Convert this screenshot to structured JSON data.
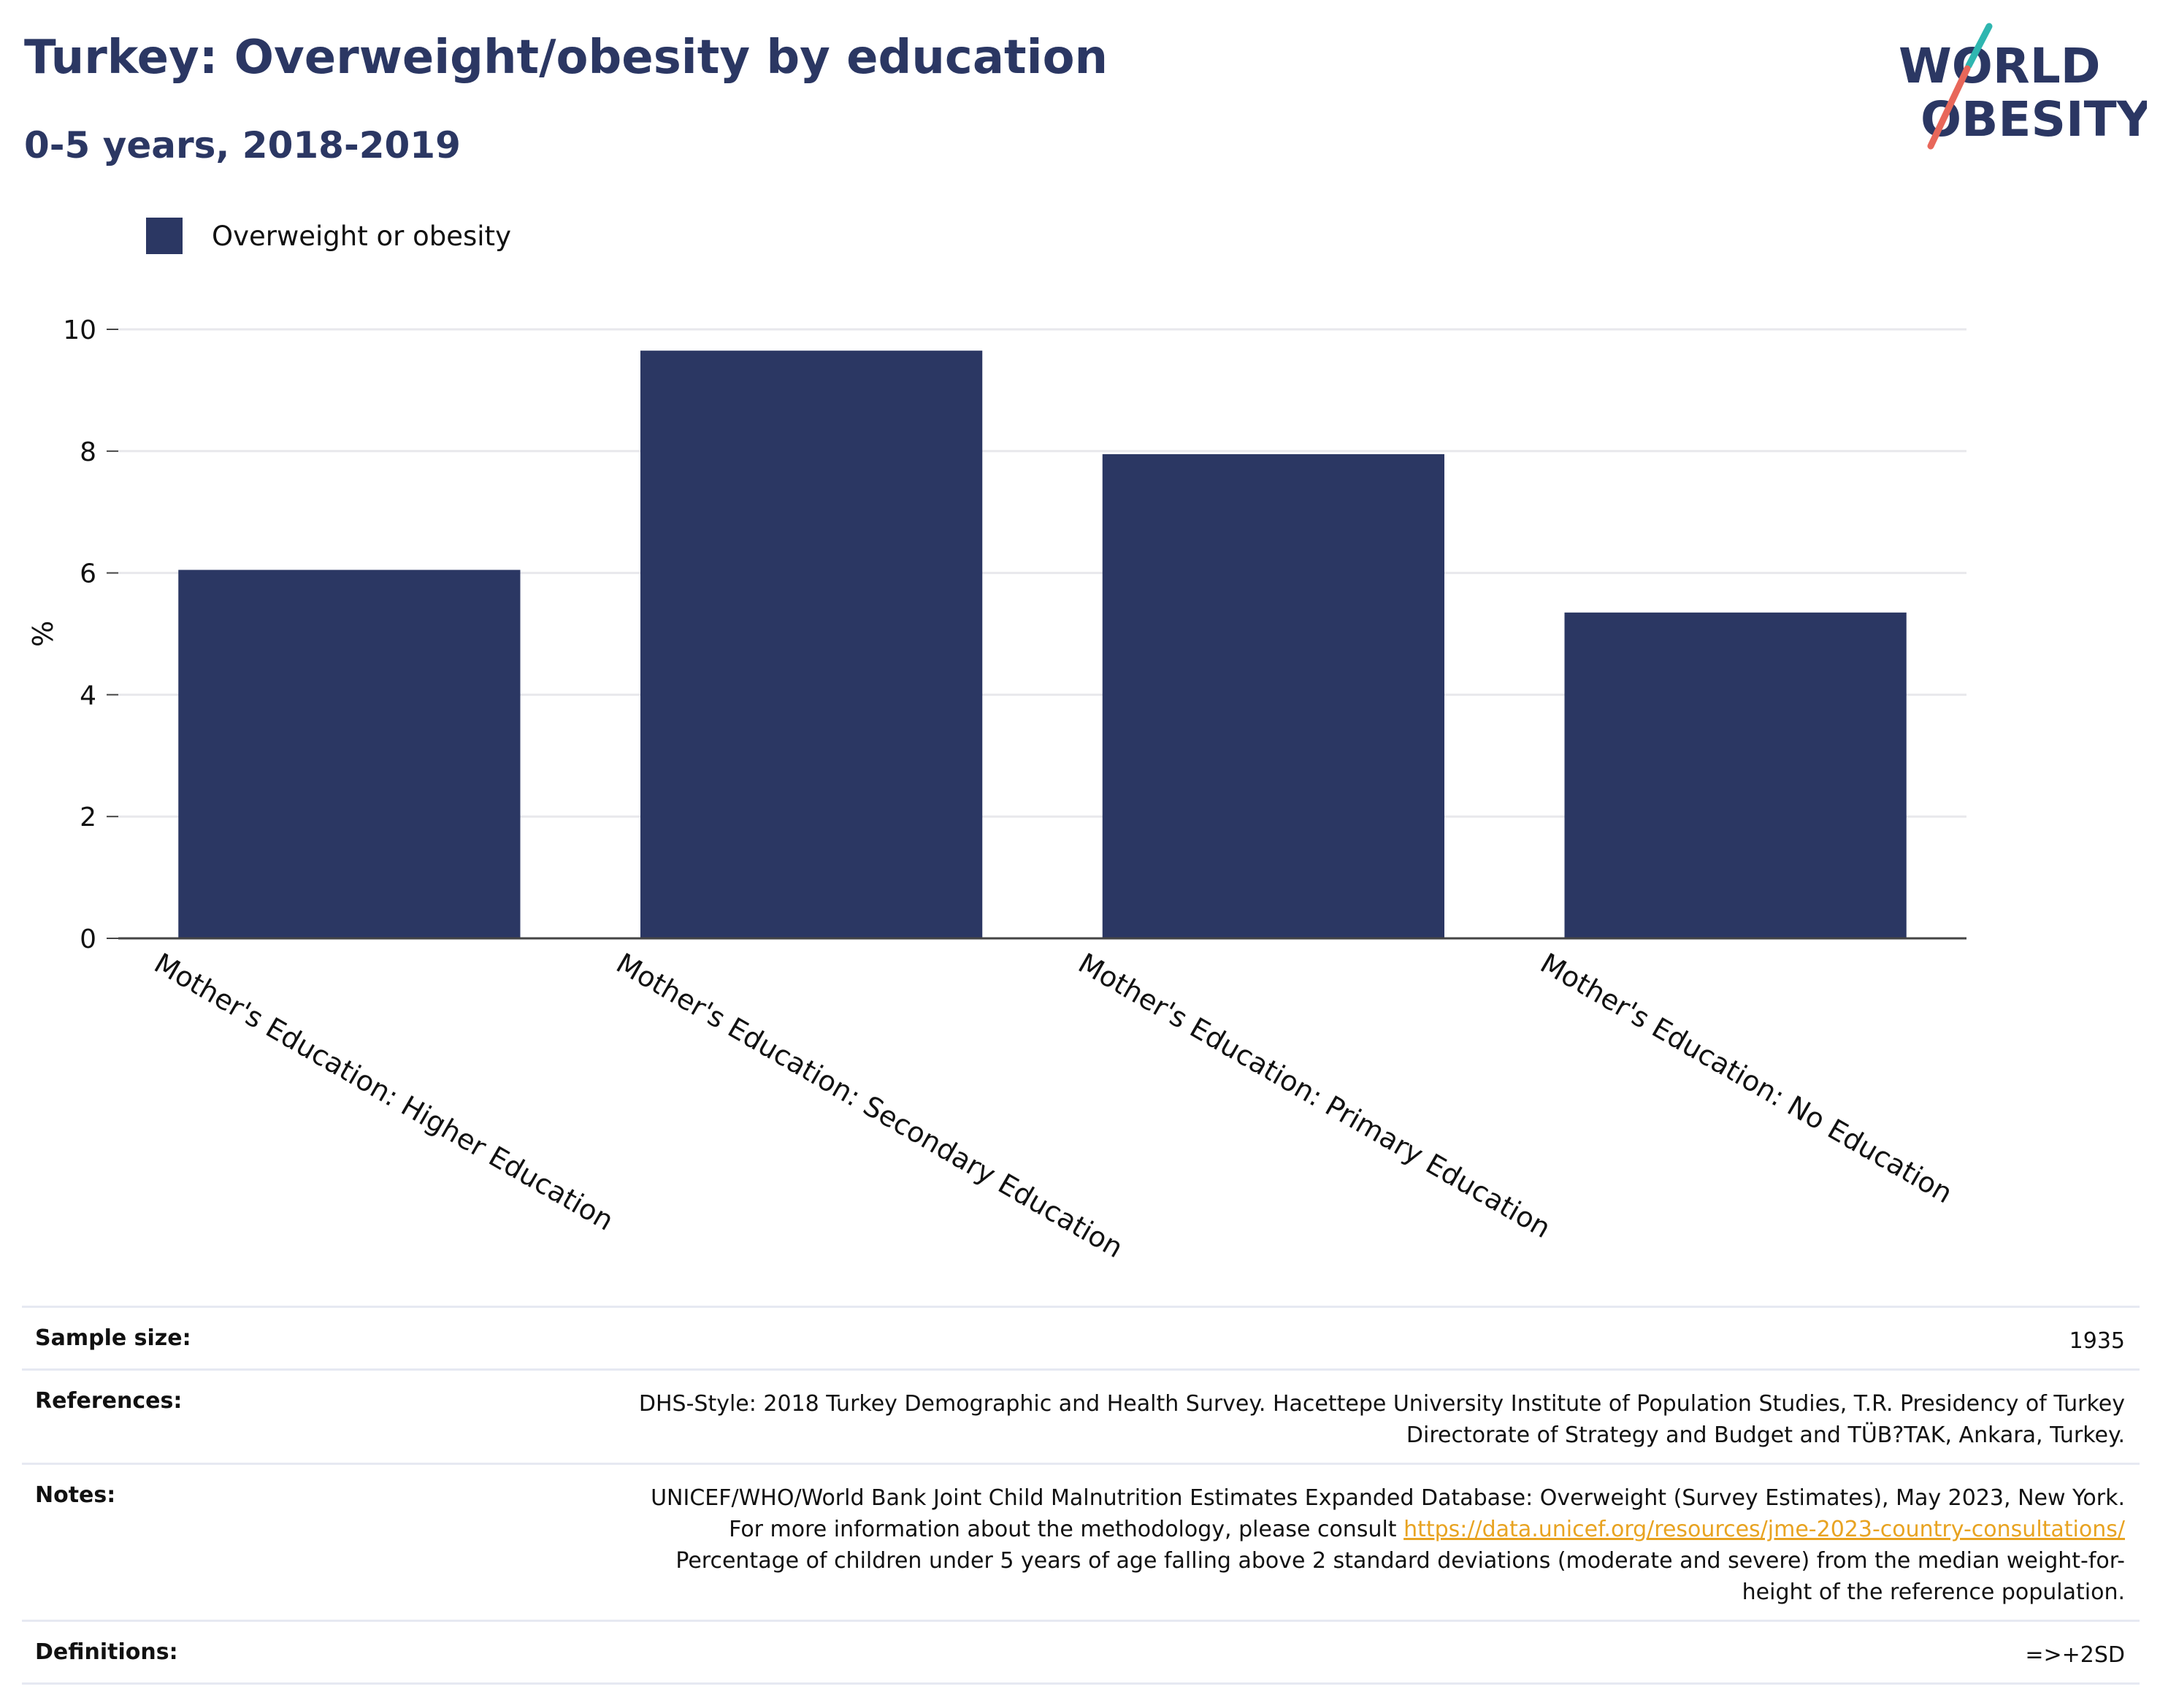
{
  "title": "Turkey: Overweight/obesity by education",
  "subtitle": "0-5 years, 2018-2019",
  "logo": {
    "line1": "WORLD",
    "line2": "OBESITY",
    "color_text": "#2b3763",
    "color_teal": "#2fb6b0",
    "color_coral": "#e8675a"
  },
  "legend": {
    "label": "Overweight or obesity",
    "color": "#2b3763"
  },
  "chart_data": {
    "type": "bar",
    "categories": [
      "Mother's Education: Higher Education",
      "Mother's Education: Secondary Education",
      "Mother's Education: Primary Education",
      "Mother's Education: No Education"
    ],
    "series": [
      {
        "name": "Overweight or obesity",
        "values": [
          6.05,
          9.65,
          7.95,
          5.35
        ],
        "color": "#2b3763"
      }
    ],
    "ylabel": "%",
    "ylim": [
      0,
      10
    ],
    "yticks": [
      0,
      2,
      4,
      6,
      8,
      10
    ],
    "grid": true,
    "legend_position": "top-left"
  },
  "info": [
    {
      "key": "Sample size:",
      "value": "1935"
    },
    {
      "key": "References:",
      "value": "DHS-Style: 2018 Turkey Demographic and Health Survey. Hacettepe University Institute of Population Studies, T.R. Presidency of Turkey Directorate of Strategy and Budget and TÜB?TAK, Ankara, Turkey."
    },
    {
      "key": "Notes:",
      "value_before": "UNICEF/WHO/World Bank Joint Child Malnutrition Estimates Expanded Database: Overweight (Survey Estimates), May 2023, New York. For more information about the methodology, please consult ",
      "link": "https://data.unicef.org/resources/jme-2023-country-consultations/",
      "value_after": " Percentage of children under 5 years of age falling above 2 standard deviations (moderate and severe) from the median weight-for-height of the reference population."
    },
    {
      "key": "Definitions:",
      "value": "=>+2SD"
    }
  ]
}
